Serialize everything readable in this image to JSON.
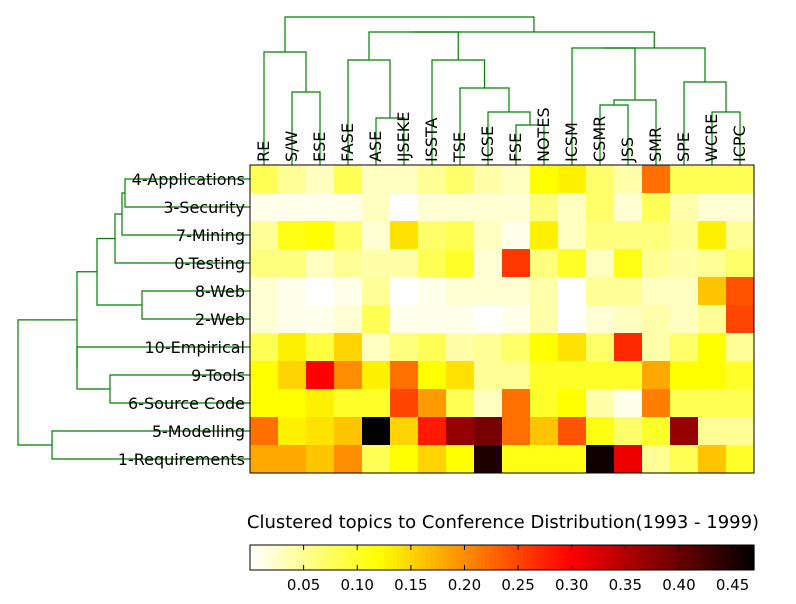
{
  "chart_data": {
    "type": "heatmap",
    "title": "Clustered topics to Conference Distribution(1993 - 1999)",
    "columns": [
      "RE",
      "S/W",
      "ESE",
      "FASE",
      "ASE",
      "IJSEKE",
      "ISSTA",
      "TSE",
      "ICSE",
      "FSE",
      "NOTES",
      "ICSM",
      "CSMR",
      "JSS",
      "SMR",
      "SPE",
      "WCRE",
      "ICPC"
    ],
    "rows": [
      "4-Applications",
      "3-Security",
      "7-Mining",
      "0-Testing",
      "8-Web",
      "2-Web",
      "10-Empirical",
      "9-Tools",
      "6-Source Code",
      "5-Modelling",
      "1-Requirements"
    ],
    "values": [
      [
        0.08,
        0.05,
        0.03,
        0.08,
        0.03,
        0.03,
        0.05,
        0.07,
        0.04,
        0.03,
        0.12,
        0.13,
        0.07,
        0.04,
        0.22,
        0.08,
        0.08,
        0.08
      ],
      [
        0.01,
        0.01,
        0.01,
        0.01,
        0.03,
        0.0,
        0.02,
        0.02,
        0.02,
        0.02,
        0.06,
        0.03,
        0.07,
        0.02,
        0.08,
        0.04,
        0.02,
        0.02
      ],
      [
        0.05,
        0.11,
        0.12,
        0.07,
        0.02,
        0.14,
        0.07,
        0.08,
        0.03,
        0.01,
        0.13,
        0.03,
        0.06,
        0.06,
        0.06,
        0.05,
        0.13,
        0.05
      ],
      [
        0.06,
        0.06,
        0.03,
        0.05,
        0.04,
        0.04,
        0.08,
        0.1,
        0.02,
        0.26,
        0.06,
        0.1,
        0.03,
        0.11,
        0.05,
        0.04,
        0.05,
        0.07
      ],
      [
        0.02,
        0.01,
        0.0,
        0.01,
        0.05,
        0.0,
        0.01,
        0.02,
        0.02,
        0.02,
        0.04,
        0.0,
        0.05,
        0.05,
        0.03,
        0.03,
        0.16,
        0.24
      ],
      [
        0.02,
        0.01,
        0.01,
        0.02,
        0.08,
        0.01,
        0.01,
        0.01,
        0.0,
        0.01,
        0.04,
        0.0,
        0.02,
        0.03,
        0.04,
        0.03,
        0.05,
        0.25
      ],
      [
        0.08,
        0.13,
        0.09,
        0.15,
        0.03,
        0.06,
        0.08,
        0.04,
        0.05,
        0.07,
        0.12,
        0.14,
        0.07,
        0.27,
        0.04,
        0.07,
        0.12,
        0.05
      ],
      [
        0.12,
        0.15,
        0.3,
        0.2,
        0.13,
        0.22,
        0.12,
        0.14,
        0.05,
        0.05,
        0.1,
        0.1,
        0.1,
        0.1,
        0.18,
        0.12,
        0.12,
        0.1
      ],
      [
        0.12,
        0.12,
        0.13,
        0.1,
        0.1,
        0.25,
        0.19,
        0.08,
        0.03,
        0.22,
        0.1,
        0.12,
        0.04,
        0.01,
        0.21,
        0.08,
        0.08,
        0.08
      ],
      [
        0.22,
        0.13,
        0.14,
        0.16,
        0.47,
        0.15,
        0.28,
        0.37,
        0.39,
        0.22,
        0.16,
        0.24,
        0.11,
        0.07,
        0.1,
        0.37,
        0.05,
        0.05
      ],
      [
        0.18,
        0.18,
        0.16,
        0.2,
        0.08,
        0.12,
        0.15,
        0.12,
        0.45,
        0.11,
        0.11,
        0.11,
        0.46,
        0.31,
        0.05,
        0.08,
        0.16,
        0.1
      ]
    ],
    "colormap": "hot_r",
    "colorbar": {
      "range": [
        0.0,
        0.47
      ],
      "ticks": [
        0.05,
        0.1,
        0.15,
        0.2,
        0.25,
        0.3,
        0.35,
        0.4,
        0.45
      ],
      "tick_labels": [
        "0.05",
        "0.10",
        "0.15",
        "0.20",
        "0.25",
        "0.30",
        "0.35",
        "0.40",
        "0.45"
      ]
    },
    "dendrogram_color": "#008000"
  }
}
